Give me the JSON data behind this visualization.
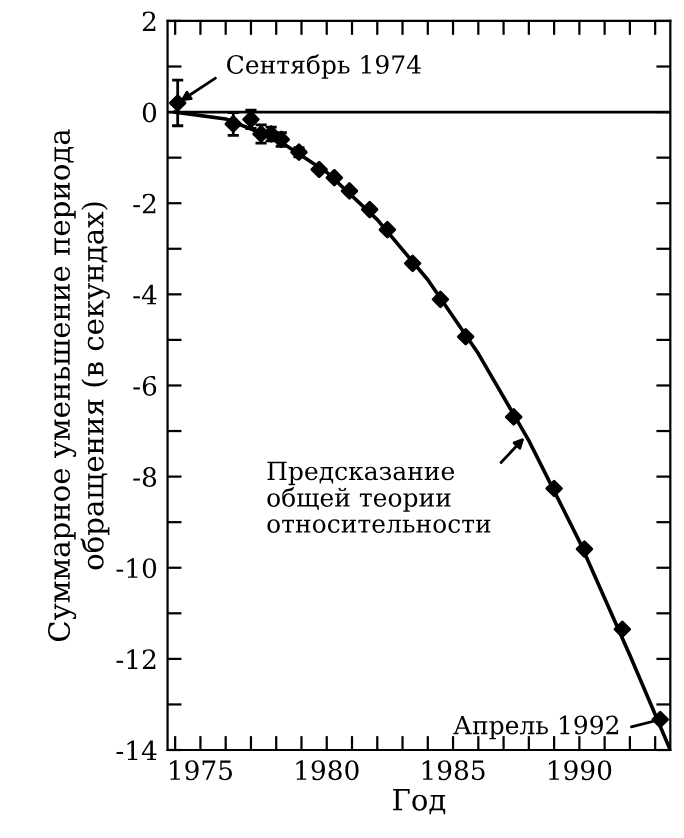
{
  "chart_data": {
    "type": "scatter",
    "xlabel": "Год",
    "ylabel": "Суммарное уменьшение периода\nобращения (в секундах)",
    "xlim": [
      1973.7,
      1993.6
    ],
    "ylim": [
      -14,
      2
    ],
    "xticks": [
      {
        "value": 1974,
        "label": null
      },
      1975,
      {
        "value": 1976,
        "label": null
      },
      {
        "value": 1977,
        "label": null
      },
      {
        "value": 1978,
        "label": null
      },
      {
        "value": 1979,
        "label": null
      },
      1980,
      {
        "value": 1981,
        "label": null
      },
      {
        "value": 1982,
        "label": null
      },
      {
        "value": 1983,
        "label": null
      },
      {
        "value": 1984,
        "label": null
      },
      1985,
      {
        "value": 1986,
        "label": null
      },
      {
        "value": 1987,
        "label": null
      },
      {
        "value": 1988,
        "label": null
      },
      {
        "value": 1989,
        "label": null
      },
      1990,
      {
        "value": 1991,
        "label": null
      },
      {
        "value": 1992,
        "label": null
      },
      {
        "value": 1993,
        "label": null
      }
    ],
    "yticks": [
      2,
      {
        "value": 1,
        "label": null
      },
      0,
      {
        "value": -1,
        "label": null
      },
      -2,
      {
        "value": -3,
        "label": null
      },
      -4,
      {
        "value": -5,
        "label": null
      },
      -6,
      {
        "value": -7,
        "label": null
      },
      -8,
      {
        "value": -9,
        "label": null
      },
      -10,
      {
        "value": -11,
        "label": null
      },
      -12,
      {
        "value": -13,
        "label": null
      },
      -14
    ],
    "grid": false,
    "legend": false,
    "ref_lines": [
      {
        "axis": "y",
        "value": 0,
        "color": "#000000"
      }
    ],
    "series": [
      {
        "color": "#000000",
        "marker": "diamond",
        "x": [
          1974.1,
          1976.3,
          1977.0,
          1977.4,
          1977.8,
          1978.2,
          1978.9,
          1979.7,
          1980.3,
          1980.9,
          1981.7,
          1982.4,
          1983.4,
          1984.5,
          1985.5,
          1987.4,
          1989.0,
          1990.2,
          1991.7,
          1993.2
        ],
        "values": [
          0.2,
          -0.26,
          -0.16,
          -0.48,
          -0.48,
          -0.6,
          -0.88,
          -1.26,
          -1.44,
          -1.73,
          -2.14,
          -2.58,
          -3.32,
          -4.11,
          -4.93,
          -6.69,
          -8.26,
          -9.59,
          -11.35,
          -13.33
        ],
        "errors": [
          0.5,
          0.25,
          0.2,
          0.2,
          0.15,
          0.15,
          0.1,
          null,
          null,
          null,
          null,
          null,
          null,
          null,
          null,
          null,
          null,
          null,
          null,
          null
        ]
      },
      {
        "type": "line",
        "color": "#000000",
        "marker": "none",
        "x": [
          1974,
          1976,
          1978,
          1980,
          1982,
          1984,
          1986,
          1988,
          1990,
          1992,
          1993.6
        ],
        "values": [
          0,
          -0.15,
          -0.59,
          -1.32,
          -2.36,
          -3.68,
          -5.3,
          -7.21,
          -9.42,
          -11.92,
          -14.0
        ]
      }
    ],
    "annotations": [
      {
        "text": "Сентябрь 1974",
        "x": 1974.1,
        "y": 0.2
      },
      {
        "text": "Предсказание\nобщей теории\nотносительности",
        "x": 1987.9,
        "y": -7.1
      },
      {
        "text": "Апрель 1992",
        "x": 1993.2,
        "y": -13.33
      }
    ]
  }
}
